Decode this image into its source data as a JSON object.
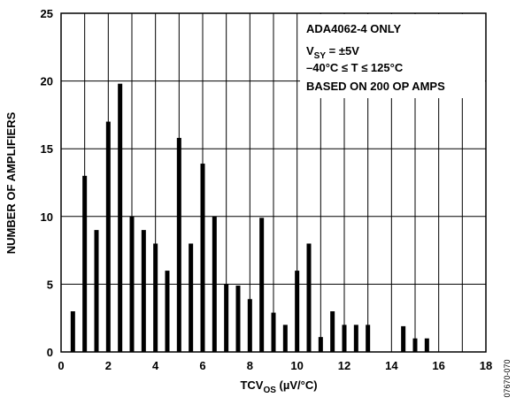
{
  "chart_data": {
    "type": "bar",
    "xlabel": "TCV",
    "xlabel_sub": "OS",
    "xlabel_unit": " (µV/°C)",
    "ylabel": "NUMBER OF AMPLIFIERS",
    "xlim": [
      0,
      18
    ],
    "ylim": [
      0,
      25
    ],
    "x_ticks": [
      "0",
      "2",
      "4",
      "6",
      "8",
      "10",
      "12",
      "14",
      "16",
      "18"
    ],
    "y_ticks": [
      "0",
      "5",
      "10",
      "15",
      "20",
      "25"
    ],
    "grid": true,
    "annotation": {
      "line1": "ADA4062-4 ONLY",
      "line2_main": "V",
      "line2_sub": "SY",
      "line2_rest": " = ±5V",
      "line3": "–40°C ≤ T ≤ 125°C",
      "line4": "BASED ON 200 OP AMPS",
      "placement": "top-right"
    },
    "figure_code": "07670-070",
    "x": [
      0.5,
      1.0,
      1.5,
      2.0,
      2.5,
      3.0,
      3.5,
      4.0,
      4.5,
      5.0,
      5.5,
      6.0,
      6.5,
      7.0,
      7.5,
      8.0,
      8.5,
      9.0,
      9.5,
      10.0,
      10.5,
      11.0,
      11.5,
      12.0,
      12.5,
      13.0,
      14.5,
      15.0,
      15.5
    ],
    "values": [
      3,
      13,
      9,
      17,
      19.8,
      10,
      9,
      8,
      6,
      15.8,
      8,
      13.9,
      10,
      5,
      4.9,
      3.9,
      9.9,
      2.9,
      2,
      6,
      8,
      1.1,
      3,
      2,
      2,
      2,
      1.9,
      1,
      1
    ]
  }
}
